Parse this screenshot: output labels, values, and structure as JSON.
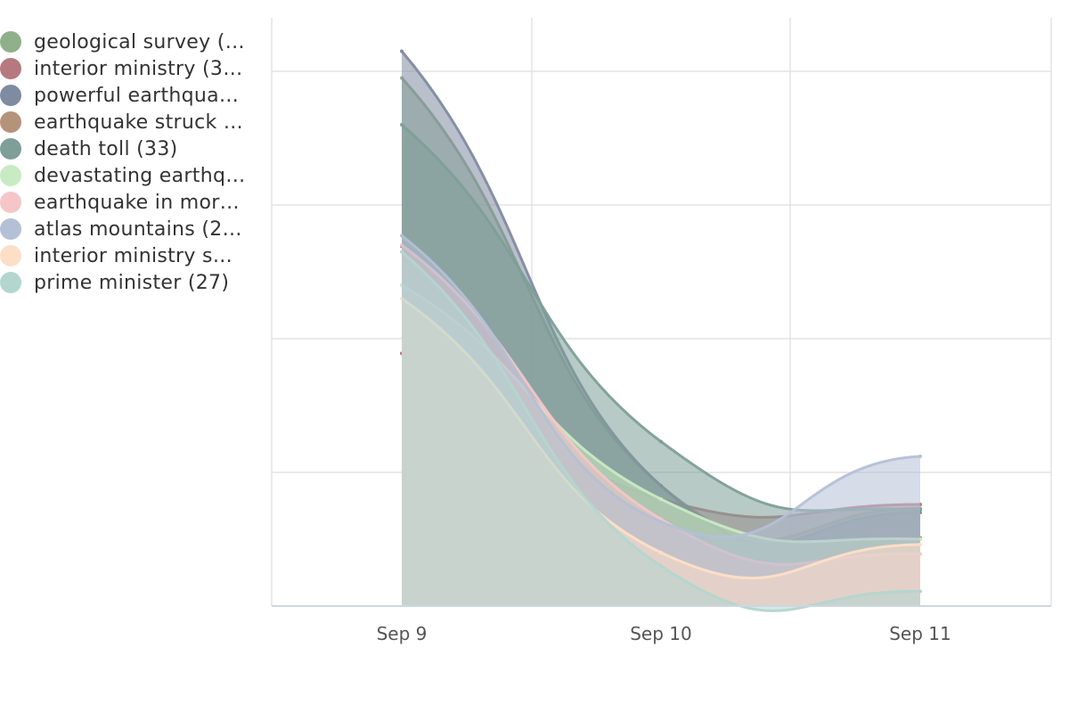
{
  "chart_data": {
    "type": "area",
    "title": "",
    "xlabel": "",
    "ylabel": "",
    "x": [
      "Sep 9",
      "Sep 10",
      "Sep 11"
    ],
    "ylim": [
      0,
      44
    ],
    "grid": true,
    "legend_position": "top-left",
    "series": [
      {
        "name": "geological survey (…",
        "color": "#8fb08a",
        "values": [
          39.5,
          9.0,
          7.3
        ]
      },
      {
        "name": "interior ministry (3…",
        "color": "#b5797f",
        "values": [
          18.9,
          8.0,
          7.6
        ]
      },
      {
        "name": "powerful earthqua…",
        "color": "#7f8ba1",
        "values": [
          41.5,
          9.0,
          7.0
        ]
      },
      {
        "name": "earthquake struck …",
        "color": "#b5927a",
        "values": [
          26.9,
          5.0,
          5.1
        ]
      },
      {
        "name": "death toll (33)",
        "color": "#7d9f98",
        "values": [
          36.0,
          12.3,
          7.2
        ]
      },
      {
        "name": "devastating earthq…",
        "color": "#c8ebc3",
        "values": [
          24.0,
          8.0,
          5.0
        ]
      },
      {
        "name": "earthquake in mor…",
        "color": "#f5c5c8",
        "values": [
          27.0,
          6.5,
          3.9
        ]
      },
      {
        "name": "atlas mountains (2…",
        "color": "#b4c0d6",
        "values": [
          27.7,
          6.3,
          11.2
        ]
      },
      {
        "name": "interior ministry s…",
        "color": "#fddfc8",
        "values": [
          23.0,
          4.0,
          4.6
        ]
      },
      {
        "name": "prime minister (27)",
        "color": "#b3d6cf",
        "values": [
          26.5,
          3.0,
          1.1
        ]
      }
    ]
  }
}
